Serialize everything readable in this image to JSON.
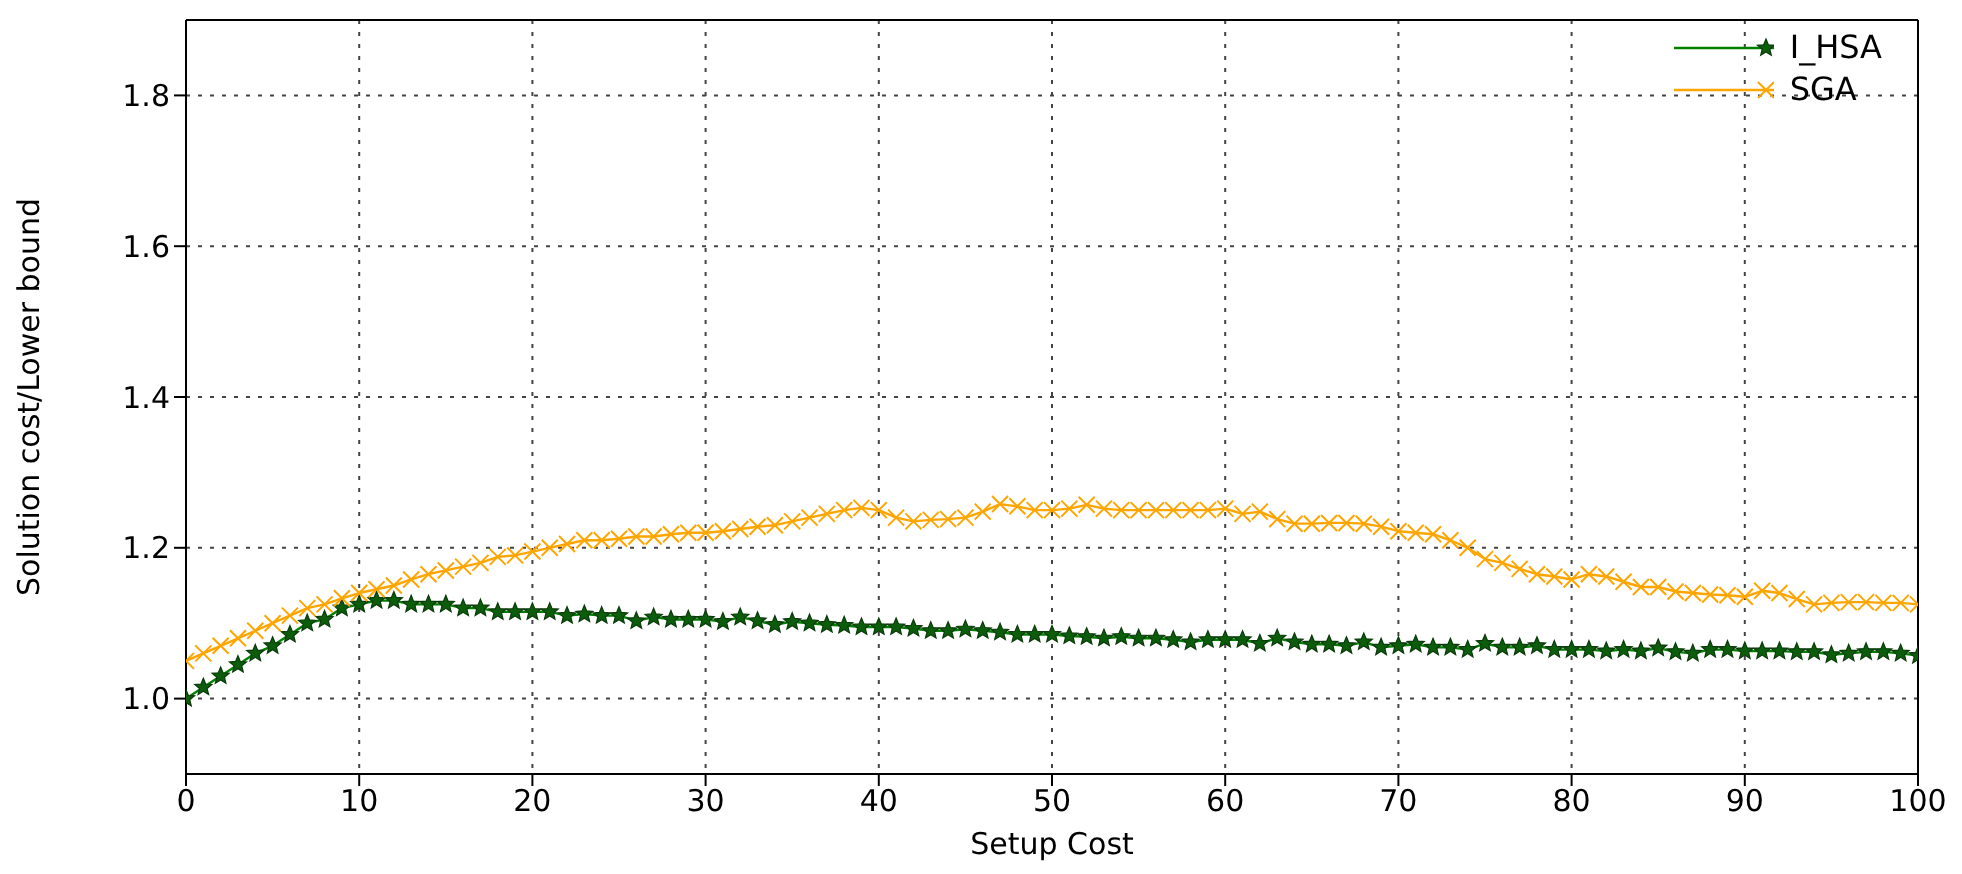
{
  "chart_data": {
    "type": "line",
    "xlabel": "Setup Cost",
    "ylabel": "Solution cost/Lower bound",
    "x": [
      0,
      1,
      2,
      3,
      4,
      5,
      6,
      7,
      8,
      9,
      10,
      11,
      12,
      13,
      14,
      15,
      16,
      17,
      18,
      19,
      20,
      21,
      22,
      23,
      24,
      25,
      26,
      27,
      28,
      29,
      30,
      31,
      32,
      33,
      34,
      35,
      36,
      37,
      38,
      39,
      40,
      41,
      42,
      43,
      44,
      45,
      46,
      47,
      48,
      49,
      50,
      51,
      52,
      53,
      54,
      55,
      56,
      57,
      58,
      59,
      60,
      61,
      62,
      63,
      64,
      65,
      66,
      67,
      68,
      69,
      70,
      71,
      72,
      73,
      74,
      75,
      76,
      77,
      78,
      79,
      80,
      81,
      82,
      83,
      84,
      85,
      86,
      87,
      88,
      89,
      90,
      91,
      92,
      93,
      94,
      95,
      96,
      97,
      98,
      99,
      100
    ],
    "series": [
      {
        "name": "I_HSA",
        "color": "#008000",
        "marker": "star",
        "values": [
          1.0,
          1.015,
          1.03,
          1.045,
          1.06,
          1.07,
          1.085,
          1.1,
          1.105,
          1.12,
          1.125,
          1.13,
          1.13,
          1.125,
          1.125,
          1.125,
          1.12,
          1.12,
          1.115,
          1.115,
          1.115,
          1.115,
          1.11,
          1.112,
          1.11,
          1.11,
          1.103,
          1.108,
          1.105,
          1.105,
          1.105,
          1.102,
          1.108,
          1.103,
          1.098,
          1.102,
          1.1,
          1.098,
          1.097,
          1.095,
          1.095,
          1.095,
          1.093,
          1.09,
          1.09,
          1.092,
          1.09,
          1.088,
          1.085,
          1.085,
          1.085,
          1.083,
          1.082,
          1.08,
          1.082,
          1.08,
          1.08,
          1.078,
          1.075,
          1.078,
          1.078,
          1.078,
          1.073,
          1.08,
          1.075,
          1.072,
          1.072,
          1.07,
          1.075,
          1.068,
          1.07,
          1.072,
          1.068,
          1.068,
          1.065,
          1.073,
          1.068,
          1.068,
          1.07,
          1.065,
          1.065,
          1.065,
          1.063,
          1.065,
          1.063,
          1.067,
          1.062,
          1.06,
          1.065,
          1.065,
          1.063,
          1.063,
          1.063,
          1.062,
          1.062,
          1.058,
          1.06,
          1.062,
          1.062,
          1.06,
          1.057
        ]
      },
      {
        "name": "SGA",
        "color": "#ffa500",
        "marker": "cross",
        "values": [
          1.05,
          1.06,
          1.07,
          1.08,
          1.09,
          1.1,
          1.11,
          1.12,
          1.125,
          1.133,
          1.14,
          1.145,
          1.15,
          1.158,
          1.165,
          1.17,
          1.175,
          1.18,
          1.188,
          1.19,
          1.195,
          1.2,
          1.205,
          1.21,
          1.21,
          1.212,
          1.215,
          1.215,
          1.218,
          1.22,
          1.22,
          1.222,
          1.225,
          1.228,
          1.23,
          1.235,
          1.24,
          1.245,
          1.25,
          1.253,
          1.25,
          1.24,
          1.235,
          1.237,
          1.238,
          1.24,
          1.248,
          1.258,
          1.255,
          1.25,
          1.25,
          1.252,
          1.257,
          1.252,
          1.25,
          1.25,
          1.25,
          1.25,
          1.25,
          1.25,
          1.252,
          1.245,
          1.248,
          1.238,
          1.232,
          1.232,
          1.233,
          1.233,
          1.232,
          1.228,
          1.222,
          1.22,
          1.218,
          1.21,
          1.2,
          1.185,
          1.18,
          1.172,
          1.165,
          1.162,
          1.158,
          1.165,
          1.162,
          1.155,
          1.148,
          1.148,
          1.142,
          1.14,
          1.138,
          1.137,
          1.135,
          1.143,
          1.14,
          1.132,
          1.125,
          1.127,
          1.128,
          1.128,
          1.127,
          1.127,
          1.125
        ]
      }
    ],
    "xlim": [
      0,
      100
    ],
    "xticks": [
      0,
      10,
      20,
      30,
      40,
      50,
      60,
      70,
      80,
      90,
      100
    ],
    "ylim": [
      0.9,
      1.9
    ],
    "yticks": [
      {
        "value": 1.0,
        "label": "1.0"
      },
      {
        "value": 1.2,
        "label": "1.2"
      },
      {
        "value": 1.4,
        "label": "1.4"
      },
      {
        "value": 1.6,
        "label": "1.6"
      },
      {
        "value": 1.8,
        "label": "1.8"
      }
    ],
    "grid": true,
    "legend": "top right"
  }
}
